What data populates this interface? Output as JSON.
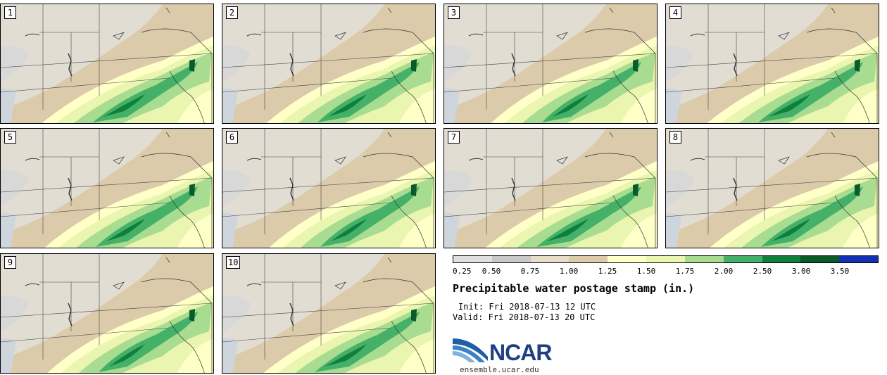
{
  "panels": [
    {
      "number": "1"
    },
    {
      "number": "2"
    },
    {
      "number": "3"
    },
    {
      "number": "4"
    },
    {
      "number": "5"
    },
    {
      "number": "6"
    },
    {
      "number": "7"
    },
    {
      "number": "8"
    },
    {
      "number": "9"
    },
    {
      "number": "10"
    }
  ],
  "legend": {
    "title": "Precipitable water postage stamp (in.)",
    "init": "Init: Fri 2018-07-13 12 UTC",
    "valid": "Valid: Fri 2018-07-13 20 UTC",
    "ticks": [
      "0.25",
      "0.50",
      "0.75",
      "1.00",
      "1.25",
      "1.50",
      "1.75",
      "2.00",
      "2.50",
      "3.00",
      "3.50"
    ],
    "colors": [
      "#e0e0e0",
      "#c8c8c8",
      "#e6dcc8",
      "#dccbaa",
      "#ffffc8",
      "#eaf5b0",
      "#a8dc90",
      "#45b068",
      "#0f7f3c",
      "#0a5a2a",
      "#1430b4"
    ]
  },
  "logo": {
    "text": "NCAR",
    "url": "ensemble.ucar.edu",
    "color": "#1f3f7f"
  }
}
